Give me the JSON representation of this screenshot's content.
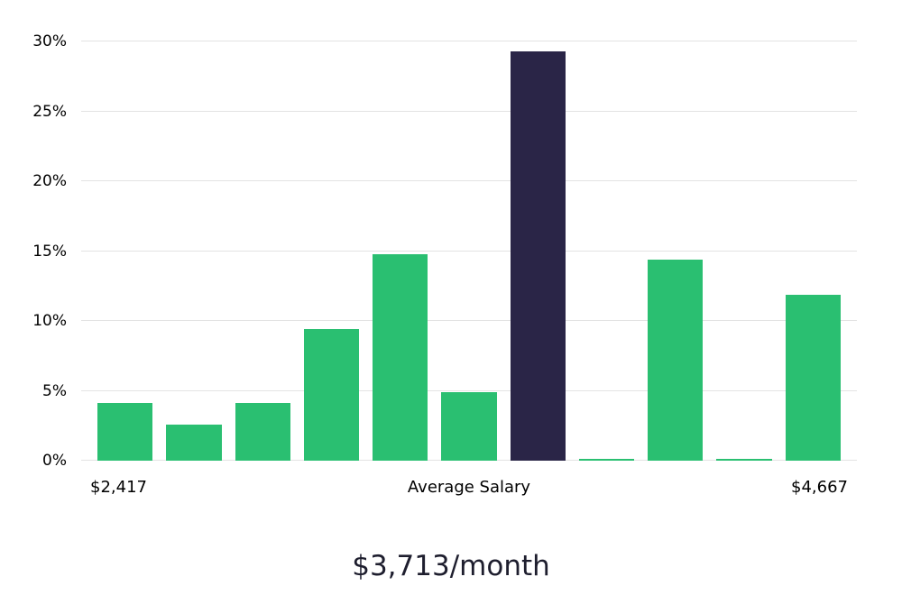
{
  "chart_data": {
    "type": "bar",
    "title": "",
    "values": [
      4.1,
      2.6,
      4.1,
      9.4,
      14.8,
      4.9,
      29.3,
      0.15,
      14.4,
      0.15,
      11.9
    ],
    "highlight_index": 6,
    "bar_color": "#2abf71",
    "highlight_color": "#2a2547",
    "ylim": [
      0,
      30
    ],
    "yticks": [
      0,
      5,
      10,
      15,
      20,
      25,
      30
    ],
    "ytick_suffix": "%",
    "grid": true,
    "legend": "none",
    "x_axis_labels": {
      "left": "$2,417",
      "center": "Average Salary",
      "right": "$4,667"
    },
    "caption": "$3,713/month"
  }
}
